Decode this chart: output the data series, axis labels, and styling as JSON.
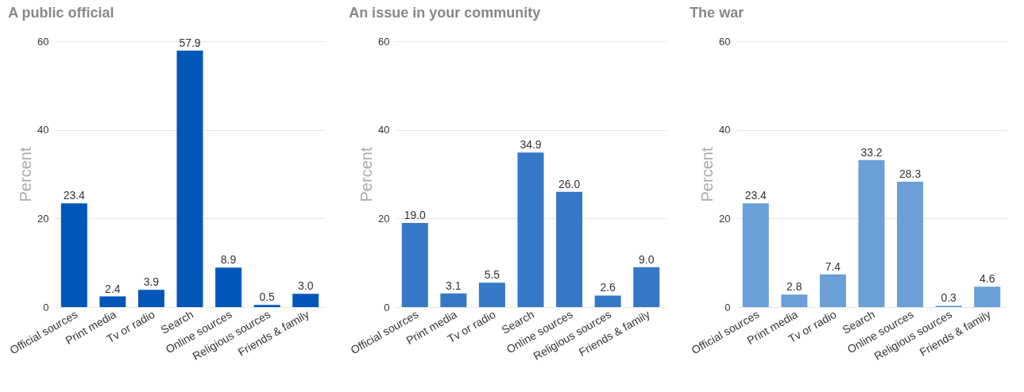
{
  "chart_data": [
    {
      "type": "bar",
      "title": "A public official",
      "ylabel": "Percent",
      "categories": [
        "Official sources",
        "Print media",
        "Tv or radio",
        "Search",
        "Online sources",
        "Religious sources",
        "Friends & family"
      ],
      "values": [
        23.4,
        2.4,
        3.9,
        57.9,
        8.9,
        0.5,
        3.0
      ],
      "value_labels": [
        "23.4",
        "2.4",
        "3.9",
        "57.9",
        "8.9",
        "0.5",
        "3.0"
      ],
      "color": "#0057b8",
      "ylim": [
        0,
        60
      ],
      "yticks": [
        0,
        20,
        40,
        60
      ],
      "grid": "y"
    },
    {
      "type": "bar",
      "title": "An issue in your community",
      "ylabel": "Percent",
      "categories": [
        "Official sources",
        "Print media",
        "Tv or radio",
        "Search",
        "Online sources",
        "Religious sources",
        "Friends & family"
      ],
      "values": [
        19.0,
        3.1,
        5.5,
        34.9,
        26.0,
        2.6,
        9.0
      ],
      "value_labels": [
        "19.0",
        "3.1",
        "5.5",
        "34.9",
        "26.0",
        "2.6",
        "9.0"
      ],
      "color": "#3478c6",
      "ylim": [
        0,
        60
      ],
      "yticks": [
        0,
        20,
        40,
        60
      ],
      "grid": "y"
    },
    {
      "type": "bar",
      "title": "The war",
      "ylabel": "Percent",
      "categories": [
        "Official sources",
        "Print media",
        "Tv or radio",
        "Search",
        "Online sources",
        "Religious sources",
        "Friends & family"
      ],
      "values": [
        23.4,
        2.8,
        7.4,
        33.2,
        28.3,
        0.3,
        4.6
      ],
      "value_labels": [
        "23.4",
        "2.8",
        "7.4",
        "33.2",
        "28.3",
        "0.3",
        "4.6"
      ],
      "color": "#6a9fd8",
      "ylim": [
        0,
        60
      ],
      "yticks": [
        0,
        20,
        40,
        60
      ],
      "grid": "y"
    }
  ]
}
